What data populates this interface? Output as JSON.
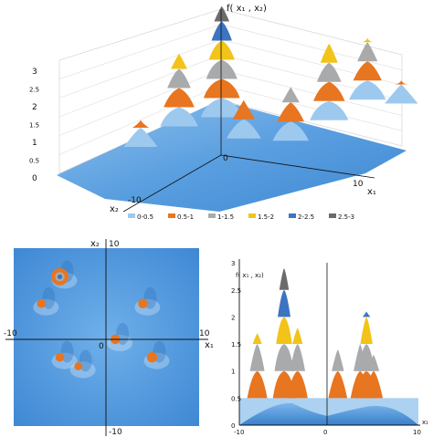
{
  "colors": {
    "band_0_0.5": "#9ec9ef",
    "band_0.5_1": "#e8751f",
    "band_1_1.5": "#a9aaac",
    "band_1.5_2": "#f2c318",
    "band_2_2.5": "#3d74c2",
    "band_2.5_3": "#6b6b6b",
    "surface_base": "#5fa4e0",
    "background": "#ffffff"
  },
  "surface3d": {
    "title": "f( x₁ , x₂)",
    "z_ticks": [
      "3",
      "2.5",
      "2",
      "1.5",
      "1",
      "0.5",
      "0"
    ],
    "x1_tick": "10",
    "x1_label": "x₁",
    "x2_tick": "-10",
    "x2_label": "x₂",
    "origin_tick": "0",
    "legend": [
      "0-0.5",
      "0.5-1",
      "1-1.5",
      "1.5-2",
      "2-2.5",
      "2.5-3"
    ]
  },
  "contour": {
    "x2_label": "x₂",
    "top_tick": "10",
    "bottom_tick": "-10",
    "left_tick": "-10",
    "right_tick": "10",
    "x1_label": "x₁",
    "origin_tick": "0"
  },
  "profile": {
    "y_label": "f( x₁ , x₂)",
    "y_ticks": [
      "3",
      "2.5",
      "2",
      "1.5",
      "1",
      "0.5",
      "0"
    ],
    "x_ticks": [
      "-10",
      "0",
      "10"
    ],
    "x_label": "x₁"
  },
  "chart_data": [
    {
      "type": "surface",
      "title": "f( x₁ , x₂)",
      "xlabel": "x₁",
      "ylabel": "x₂",
      "zlabel": "f( x₁ , x₂)",
      "xlim": [
        -10,
        10
      ],
      "ylim": [
        -10,
        10
      ],
      "zlim": [
        0,
        3
      ],
      "legend": [
        "0-0.5",
        "0.5-1",
        "1-1.5",
        "1.5-2",
        "2-2.5",
        "2.5-3"
      ],
      "peaks": [
        {
          "x1": -5,
          "x2": 7,
          "z": 2.9
        },
        {
          "x1": -8,
          "x2": 6,
          "z": 1.9
        },
        {
          "x1": 4,
          "x2": 3,
          "z": 2.0
        },
        {
          "x1": 6,
          "x2": 7,
          "z": 1.6
        },
        {
          "x1": -2,
          "x2": 1,
          "z": 1.0
        },
        {
          "x1": 2,
          "x2": -1,
          "z": 1.4
        },
        {
          "x1": -10,
          "x2": 2,
          "z": 0.7
        },
        {
          "x1": 9,
          "x2": 5,
          "z": 0.6
        }
      ]
    },
    {
      "type": "heatmap",
      "xlabel": "x₁",
      "ylabel": "x₂",
      "xlim": [
        -10,
        10
      ],
      "ylim": [
        -10,
        10
      ],
      "spots": [
        {
          "x1": -5,
          "x2": 7,
          "level": 2.9
        },
        {
          "x1": -7,
          "x2": 4,
          "level": 0.8
        },
        {
          "x1": 4,
          "x2": 4,
          "level": 1.0
        },
        {
          "x1": 1,
          "x2": 0,
          "level": 1.0
        },
        {
          "x1": 5,
          "x2": -2,
          "level": 1.2
        },
        {
          "x1": -5,
          "x2": -2,
          "level": 0.8
        },
        {
          "x1": -3,
          "x2": -3,
          "level": 0.6
        }
      ]
    },
    {
      "type": "area",
      "xlabel": "x₁",
      "ylabel": "f( x₁ , x₂)",
      "xlim": [
        -10,
        10
      ],
      "ylim": [
        0,
        3
      ],
      "peaks": [
        {
          "x": -8,
          "y": 1.7
        },
        {
          "x": -5,
          "y": 2.9
        },
        {
          "x": -3.5,
          "y": 1.8
        },
        {
          "x": 1,
          "y": 1.4
        },
        {
          "x": 3.5,
          "y": 1.5
        },
        {
          "x": 4.2,
          "y": 2.1
        },
        {
          "x": 5,
          "y": 1.3
        }
      ]
    }
  ]
}
